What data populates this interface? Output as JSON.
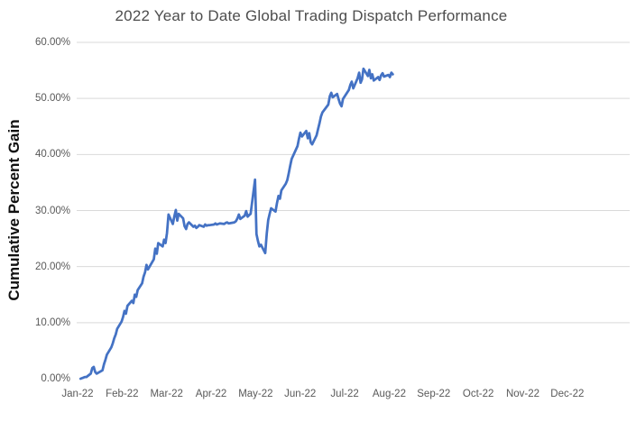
{
  "chart": {
    "title": "2022 Year to Date Global Trading Dispatch Performance",
    "y_axis_title": "Cumulative Percent Gain",
    "colors": {
      "line": "#4472C4",
      "gridline": "#D9D9D9",
      "title_text": "#4d4d4d",
      "tick_text": "#595959",
      "axis_title_text": "#111111"
    }
  },
  "chart_data": {
    "type": "line",
    "title": "2022 Year to Date Global Trading Dispatch Performance",
    "xlabel": "",
    "ylabel": "Cumulative Percent Gain",
    "ylim": [
      0,
      60
    ],
    "y_ticks": [
      {
        "label": "0.00%",
        "value": 0
      },
      {
        "label": "10.00%",
        "value": 10
      },
      {
        "label": "20.00%",
        "value": 20
      },
      {
        "label": "30.00%",
        "value": 30
      },
      {
        "label": "40.00%",
        "value": 40
      },
      {
        "label": "50.00%",
        "value": 50
      },
      {
        "label": "60.00%",
        "value": 60
      }
    ],
    "gridlines_at": [
      10,
      20,
      30,
      40,
      50,
      60
    ],
    "grid": "horizontal-only, no gridline at 0%, no axis lines",
    "legend": "none",
    "x_tick_labels": [
      "Jan-22",
      "Feb-22",
      "Mar-22",
      "Apr-22",
      "May-22",
      "Jun-22",
      "Jul-22",
      "Aug-22",
      "Sep-22",
      "Oct-22",
      "Nov-22",
      "Dec-22"
    ],
    "x_axis_span": "full year 2022; data series ends in early August",
    "series": [
      {
        "name": "Cumulative Percent Gain",
        "color": "#4472C4",
        "dates": [
          "2022-01-03",
          "2022-01-04",
          "2022-01-05",
          "2022-01-06",
          "2022-01-07",
          "2022-01-10",
          "2022-01-11",
          "2022-01-12",
          "2022-01-13",
          "2022-01-14",
          "2022-01-18",
          "2022-01-19",
          "2022-01-20",
          "2022-01-21",
          "2022-01-24",
          "2022-01-25",
          "2022-01-26",
          "2022-01-27",
          "2022-01-28",
          "2022-01-31",
          "2022-02-01",
          "2022-02-02",
          "2022-02-03",
          "2022-02-04",
          "2022-02-07",
          "2022-02-08",
          "2022-02-09",
          "2022-02-10",
          "2022-02-11",
          "2022-02-14",
          "2022-02-15",
          "2022-02-16",
          "2022-02-17",
          "2022-02-18",
          "2022-02-22",
          "2022-02-23",
          "2022-02-24",
          "2022-02-25",
          "2022-02-28",
          "2022-03-01",
          "2022-03-02",
          "2022-03-03",
          "2022-03-04",
          "2022-03-07",
          "2022-03-08",
          "2022-03-09",
          "2022-03-10",
          "2022-03-11",
          "2022-03-14",
          "2022-03-15",
          "2022-03-16",
          "2022-03-17",
          "2022-03-18",
          "2022-03-21",
          "2022-03-22",
          "2022-03-23",
          "2022-03-24",
          "2022-03-25",
          "2022-03-28",
          "2022-03-29",
          "2022-03-30",
          "2022-03-31",
          "2022-04-01",
          "2022-04-04",
          "2022-04-05",
          "2022-04-06",
          "2022-04-07",
          "2022-04-08",
          "2022-04-11",
          "2022-04-12",
          "2022-04-13",
          "2022-04-14",
          "2022-04-18",
          "2022-04-19",
          "2022-04-20",
          "2022-04-21",
          "2022-04-22",
          "2022-04-25",
          "2022-04-26",
          "2022-04-27",
          "2022-04-28",
          "2022-04-29",
          "2022-05-02",
          "2022-05-03",
          "2022-05-04",
          "2022-05-05",
          "2022-05-06",
          "2022-05-09",
          "2022-05-10",
          "2022-05-11",
          "2022-05-12",
          "2022-05-13",
          "2022-05-16",
          "2022-05-17",
          "2022-05-18",
          "2022-05-19",
          "2022-05-20",
          "2022-05-23",
          "2022-05-24",
          "2022-05-25",
          "2022-05-26",
          "2022-05-27",
          "2022-05-31",
          "2022-06-01",
          "2022-06-02",
          "2022-06-03",
          "2022-06-06",
          "2022-06-07",
          "2022-06-08",
          "2022-06-09",
          "2022-06-10",
          "2022-06-13",
          "2022-06-14",
          "2022-06-15",
          "2022-06-16",
          "2022-06-17",
          "2022-06-21",
          "2022-06-22",
          "2022-06-23",
          "2022-06-24",
          "2022-06-27",
          "2022-06-28",
          "2022-06-29",
          "2022-06-30",
          "2022-07-01",
          "2022-07-05",
          "2022-07-06",
          "2022-07-07",
          "2022-07-08",
          "2022-07-11",
          "2022-07-12",
          "2022-07-13",
          "2022-07-14",
          "2022-07-15",
          "2022-07-18",
          "2022-07-19",
          "2022-07-20",
          "2022-07-21",
          "2022-07-22",
          "2022-07-25",
          "2022-07-26",
          "2022-07-27",
          "2022-07-28",
          "2022-07-29",
          "2022-08-01",
          "2022-08-02",
          "2022-08-03",
          "2022-08-04"
        ],
        "values": [
          0.0,
          0.1,
          0.2,
          0.3,
          0.3,
          0.9,
          1.9,
          2.1,
          1.2,
          0.9,
          1.5,
          2.6,
          3.4,
          4.3,
          5.6,
          6.3,
          7.2,
          7.9,
          8.9,
          10.2,
          11.0,
          12.1,
          11.6,
          13.0,
          13.9,
          13.5,
          15.0,
          14.6,
          15.8,
          17.0,
          18.2,
          19.0,
          20.3,
          19.5,
          21.3,
          23.2,
          22.3,
          24.2,
          23.6,
          24.8,
          24.2,
          26.0,
          29.3,
          27.6,
          29.0,
          30.1,
          28.2,
          29.4,
          28.6,
          27.2,
          26.7,
          27.6,
          27.9,
          27.1,
          27.3,
          26.9,
          27.1,
          27.4,
          27.1,
          27.5,
          27.3,
          27.4,
          27.4,
          27.5,
          27.7,
          27.5,
          27.6,
          27.7,
          27.6,
          27.8,
          27.9,
          27.7,
          27.9,
          28.1,
          28.6,
          29.3,
          28.5,
          29.1,
          29.9,
          28.9,
          29.2,
          29.4,
          35.5,
          25.8,
          24.6,
          23.6,
          23.9,
          22.4,
          25.9,
          28.3,
          29.4,
          30.4,
          29.8,
          31.3,
          32.6,
          32.1,
          33.6,
          34.8,
          35.4,
          36.6,
          38.0,
          39.2,
          41.5,
          42.8,
          43.9,
          43.2,
          44.2,
          42.9,
          43.8,
          42.2,
          41.8,
          43.4,
          44.5,
          45.6,
          46.8,
          47.5,
          48.9,
          50.4,
          51.0,
          50.2,
          50.8,
          49.9,
          49.1,
          48.6,
          49.9,
          51.5,
          52.4,
          53.0,
          51.8,
          53.6,
          54.6,
          52.8,
          53.4,
          55.3,
          54.0,
          55.1,
          53.6,
          54.3,
          53.2,
          53.8,
          53.3,
          54.1,
          54.5,
          53.9,
          54.2,
          53.8,
          54.6,
          54.3
        ]
      }
    ]
  }
}
